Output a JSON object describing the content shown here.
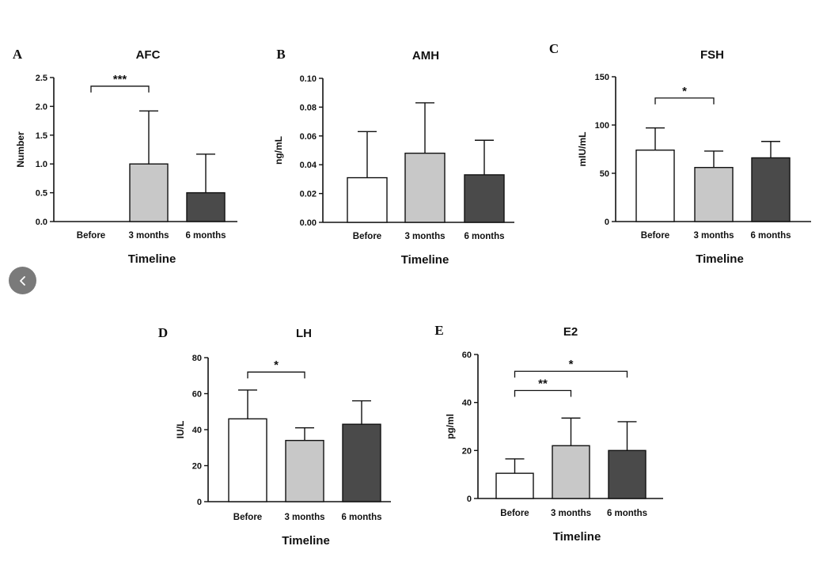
{
  "nav": {
    "prev_icon": "chevron-left-icon"
  },
  "colors": {
    "before": "#ffffff",
    "m3": "#c8c8c8",
    "m6": "#4a4a4a",
    "stroke": "#111111"
  },
  "chart_data": [
    {
      "panel": "A",
      "title": "AFC",
      "type": "bar",
      "categories": [
        "Before",
        "3 months",
        "6 months"
      ],
      "values": [
        0,
        1.0,
        0.5
      ],
      "errors": [
        0,
        0.92,
        0.67
      ],
      "ylim": [
        0,
        2.5
      ],
      "yticks": [
        0,
        0.5,
        1.0,
        1.5,
        2.0,
        2.5
      ],
      "ytick_labels": [
        "0.0",
        "0.5",
        "1.0",
        "1.5",
        "2.0",
        "2.5"
      ],
      "ylabel": "Number",
      "xlabel": "Timeline",
      "significance": [
        {
          "from": 0,
          "to": 1,
          "label": "***",
          "level": 2.35
        }
      ]
    },
    {
      "panel": "B",
      "title": "AMH",
      "type": "bar",
      "categories": [
        "Before",
        "3 months",
        "6 months"
      ],
      "values": [
        0.031,
        0.048,
        0.033
      ],
      "errors": [
        0.032,
        0.035,
        0.024
      ],
      "ylim": [
        0,
        0.1
      ],
      "yticks": [
        0,
        0.02,
        0.04,
        0.06,
        0.08,
        0.1
      ],
      "ytick_labels": [
        "0.00",
        "0.02",
        "0.04",
        "0.06",
        "0.08",
        "0.10"
      ],
      "ylabel": "ng/mL",
      "xlabel": "Timeline",
      "significance": []
    },
    {
      "panel": "C",
      "title": "FSH",
      "type": "bar",
      "categories": [
        "Before",
        "3 months",
        "6 months"
      ],
      "values": [
        74,
        56,
        66
      ],
      "errors": [
        23,
        17,
        17
      ],
      "ylim": [
        0,
        150
      ],
      "yticks": [
        0,
        50,
        100,
        150
      ],
      "ytick_labels": [
        "0",
        "50",
        "100",
        "150"
      ],
      "ylabel": "mIU/mL",
      "xlabel": "Timeline",
      "significance": [
        {
          "from": 0,
          "to": 1,
          "label": "*",
          "level": 128
        }
      ]
    },
    {
      "panel": "D",
      "title": "LH",
      "type": "bar",
      "categories": [
        "Before",
        "3 months",
        "6 months"
      ],
      "values": [
        46,
        34,
        43
      ],
      "errors": [
        16,
        7,
        13
      ],
      "ylim": [
        0,
        80
      ],
      "yticks": [
        0,
        20,
        40,
        60,
        80
      ],
      "ytick_labels": [
        "0",
        "20",
        "40",
        "60",
        "80"
      ],
      "ylabel": "IU/L",
      "xlabel": "Timeline",
      "significance": [
        {
          "from": 0,
          "to": 1,
          "label": "*",
          "level": 72
        }
      ]
    },
    {
      "panel": "E",
      "title": "E2",
      "type": "bar",
      "categories": [
        "Before",
        "3 months",
        "6 months"
      ],
      "values": [
        10.5,
        22,
        20
      ],
      "errors": [
        6,
        11.5,
        12
      ],
      "ylim": [
        0,
        60
      ],
      "yticks": [
        0,
        20,
        40,
        60
      ],
      "ytick_labels": [
        "0",
        "20",
        "40",
        "60"
      ],
      "ylabel": "pg/ml",
      "xlabel": "Timeline",
      "significance": [
        {
          "from": 0,
          "to": 1,
          "label": "**",
          "level": 45
        },
        {
          "from": 0,
          "to": 2,
          "label": "*",
          "level": 53
        }
      ]
    }
  ]
}
